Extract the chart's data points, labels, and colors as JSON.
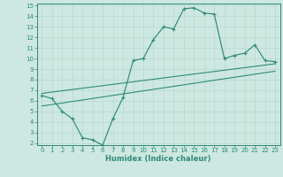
{
  "x_data": [
    0,
    1,
    2,
    3,
    4,
    5,
    6,
    7,
    8,
    9,
    10,
    11,
    12,
    13,
    14,
    15,
    16,
    17,
    18,
    19,
    20,
    21,
    22,
    23
  ],
  "y_main": [
    6.5,
    6.2,
    5.0,
    4.3,
    2.5,
    2.3,
    1.8,
    4.3,
    6.3,
    9.8,
    10.0,
    11.8,
    13.0,
    12.8,
    14.7,
    14.8,
    14.3,
    14.2,
    10.0,
    10.3,
    10.5,
    11.3,
    9.8,
    9.7
  ],
  "line1_x": [
    0,
    23
  ],
  "line1_y": [
    6.7,
    9.5
  ],
  "line2_x": [
    0,
    23
  ],
  "line2_y": [
    5.5,
    8.8
  ],
  "xlim": [
    -0.5,
    23.5
  ],
  "ylim": [
    2,
    15
  ],
  "yticks": [
    2,
    3,
    4,
    5,
    6,
    7,
    8,
    9,
    10,
    11,
    12,
    13,
    14,
    15
  ],
  "xticks": [
    0,
    1,
    2,
    3,
    4,
    5,
    6,
    7,
    8,
    9,
    10,
    11,
    12,
    13,
    14,
    15,
    16,
    17,
    18,
    19,
    20,
    21,
    22,
    23
  ],
  "xlabel": "Humidex (Indice chaleur)",
  "line_color": "#2e8b7a",
  "bg_color": "#cde8e0",
  "grid_color": "#b8d8d0",
  "tick_fontsize": 5.0,
  "xlabel_fontsize": 6.0
}
